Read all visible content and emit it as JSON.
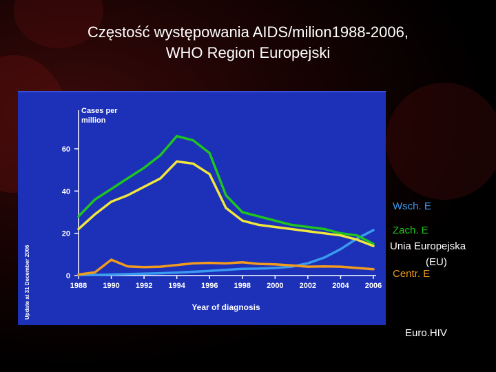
{
  "title_line1": "Częstość występowania AIDS/milion1988-2006,",
  "title_line2": "WHO Region Europejski",
  "chart_data": {
    "type": "line",
    "ylabel_line1": "Cases per",
    "ylabel_line2": "million",
    "xlabel": "Year of diagnosis",
    "side_note": "Update at 31 December 2006",
    "ylim": [
      0,
      75
    ],
    "xlim": [
      1988,
      2006
    ],
    "y_ticks": [
      0,
      20,
      40,
      60
    ],
    "x_ticks": [
      1988,
      1990,
      1992,
      1994,
      1996,
      1998,
      2000,
      2002,
      2004,
      2006
    ],
    "x": [
      1988,
      1989,
      1990,
      1991,
      1992,
      1993,
      1994,
      1995,
      1996,
      1997,
      1998,
      1999,
      2000,
      2001,
      2002,
      2003,
      2004,
      2005,
      2006
    ],
    "grid": false,
    "legend_position": "right, outside plot",
    "series": [
      {
        "name": "Wsch. E",
        "color": "#3a9af0",
        "values": [
          0.2,
          0.3,
          0.5,
          0.7,
          0.9,
          1.1,
          1.4,
          1.8,
          2.2,
          2.7,
          3.2,
          3.3,
          3.6,
          4.2,
          5.8,
          8.5,
          12.5,
          17.5,
          21.5
        ]
      },
      {
        "name": "Zach. E",
        "color": "#1ec51e",
        "values": [
          28,
          36,
          41,
          46,
          51,
          57,
          66,
          64,
          58,
          38,
          30,
          28,
          26,
          24,
          23,
          22,
          20,
          19,
          15
        ]
      },
      {
        "name": "Unia Europejska (EU)",
        "color": "#f0e63c",
        "values": [
          22,
          29,
          35,
          38,
          42,
          46,
          54,
          53,
          48,
          32,
          26,
          24,
          23,
          22,
          21,
          20,
          19,
          17,
          14
        ]
      },
      {
        "name": "Centr. E",
        "color": "#f09a1e",
        "values": [
          0.5,
          1.5,
          7.5,
          4.3,
          4.0,
          4.2,
          5.0,
          5.8,
          6.0,
          5.8,
          6.3,
          5.5,
          5.3,
          4.8,
          4.2,
          4.3,
          4.2,
          3.6,
          3.0
        ]
      }
    ]
  },
  "legend": [
    {
      "text": "Wsch. E",
      "color": "#3a9af0"
    },
    {
      "text": "Zach. E",
      "color": "#1ec51e"
    },
    {
      "text": "Unia Europejska",
      "color": "#ffffff"
    },
    {
      "text": "(EU)",
      "color": "#ffffff"
    },
    {
      "text": "Centr. E",
      "color": "#f09a1e"
    }
  ],
  "footer": "Euro.HIV"
}
